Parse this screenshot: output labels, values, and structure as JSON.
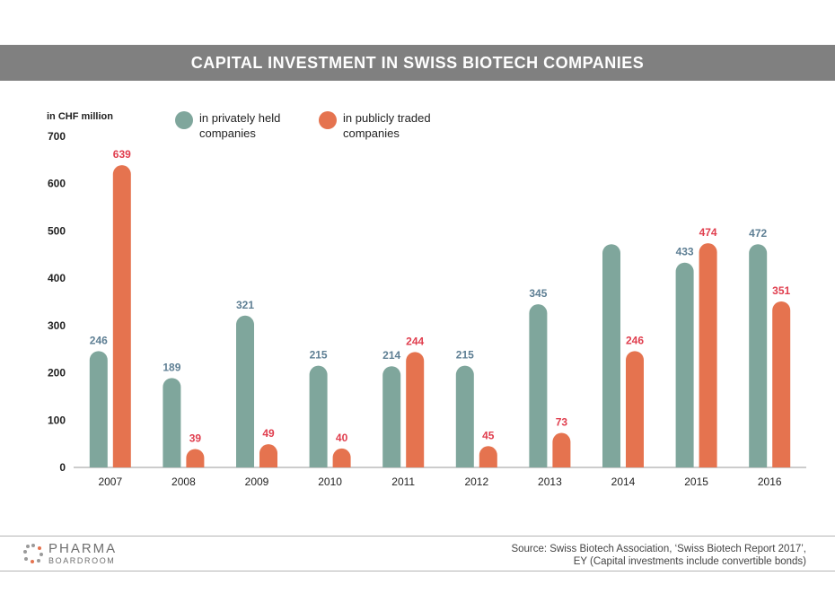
{
  "header": {
    "title": "CAPITAL INVESTMENT IN SWISS BIOTECH COMPANIES"
  },
  "legend": {
    "unit": "in CHF million",
    "private_label": "in privately held companies",
    "public_label": "in publicly traded companies"
  },
  "colors": {
    "private": "#7fa69c",
    "public": "#e5734f",
    "private_label": "#5e7f94",
    "public_label": "#e03e4e",
    "title_bar": "#808080"
  },
  "chart_data": {
    "type": "bar",
    "title": "CAPITAL INVESTMENT IN SWISS BIOTECH COMPANIES",
    "xlabel": "",
    "ylabel": "in CHF million",
    "ylim": [
      0,
      700
    ],
    "yticks": [
      0,
      100,
      200,
      300,
      400,
      500,
      600,
      700
    ],
    "grid": false,
    "legend_position": "top",
    "categories": [
      "2007",
      "2008",
      "2009",
      "2010",
      "2011",
      "2012",
      "2013",
      "2014",
      "2015",
      "2016"
    ],
    "series": [
      {
        "name": "in privately held companies",
        "values": [
          246,
          189,
          321,
          215,
          214,
          215,
          345,
          472,
          433,
          472
        ],
        "labels": [
          "246",
          "189",
          "321",
          "215",
          "214",
          "215",
          "345",
          "",
          "433",
          "472"
        ]
      },
      {
        "name": "in publicly traded companies",
        "values": [
          639,
          39,
          49,
          40,
          244,
          45,
          73,
          246,
          474,
          351
        ],
        "labels": [
          "639",
          "39",
          "49",
          "40",
          "244",
          "45",
          "73",
          "246",
          "474",
          "351"
        ]
      }
    ]
  },
  "footer": {
    "logo_top": "PHARMA",
    "logo_bottom": "BOARDROOM",
    "source_line1": "Source: Swiss Biotech Association, ‘Swiss Biotech Report 2017’,",
    "source_line2": "EY (Capital investments include convertible bonds)"
  }
}
